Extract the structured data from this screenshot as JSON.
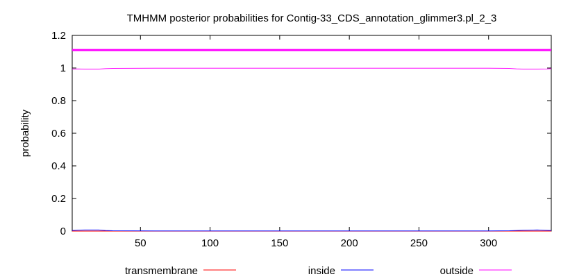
{
  "chart_data": {
    "type": "line",
    "title": "TMHMM posterior probabilities for Contig-33_CDS_annotation_glimmer3.pl_2_3",
    "xlabel": "",
    "ylabel": "probability",
    "xlim": [
      1,
      345
    ],
    "ylim": [
      0,
      1.2
    ],
    "xticks": [
      50,
      100,
      150,
      200,
      250,
      300
    ],
    "yticks": [
      0,
      0.2,
      0.4,
      0.6,
      0.8,
      1,
      1.2
    ],
    "ytick_labels": [
      "0",
      "0.2",
      "0.4",
      "0.6",
      "0.8",
      "1",
      "1.2"
    ],
    "grid": false,
    "legend_position": "bottom",
    "topology_bar": {
      "y": 1.11,
      "x_start": 1,
      "x_end": 345,
      "color": "#ff00ff",
      "label": "outside"
    },
    "series": [
      {
        "name": "transmembrane",
        "color": "#ff0000",
        "x": [
          1,
          345
        ],
        "y": [
          0,
          0
        ]
      },
      {
        "name": "inside",
        "color": "#0000ff",
        "x": [
          1,
          5,
          10,
          20,
          25,
          30,
          60,
          100,
          200,
          300,
          315,
          325,
          335,
          345
        ],
        "y": [
          0.004,
          0.006,
          0.007,
          0.007,
          0.004,
          0.002,
          0.001,
          0.001,
          0.001,
          0.001,
          0.002,
          0.005,
          0.007,
          0.004
        ]
      },
      {
        "name": "outside",
        "color": "#ff00ff",
        "x": [
          1,
          2,
          5,
          10,
          20,
          25,
          30,
          60,
          100,
          200,
          300,
          315,
          320,
          325,
          335,
          342,
          345
        ],
        "y": [
          0.995,
          0.993,
          0.994,
          0.993,
          0.993,
          0.996,
          0.998,
          0.999,
          0.999,
          0.999,
          0.999,
          0.998,
          0.995,
          0.993,
          0.993,
          0.994,
          0.996
        ]
      }
    ]
  }
}
